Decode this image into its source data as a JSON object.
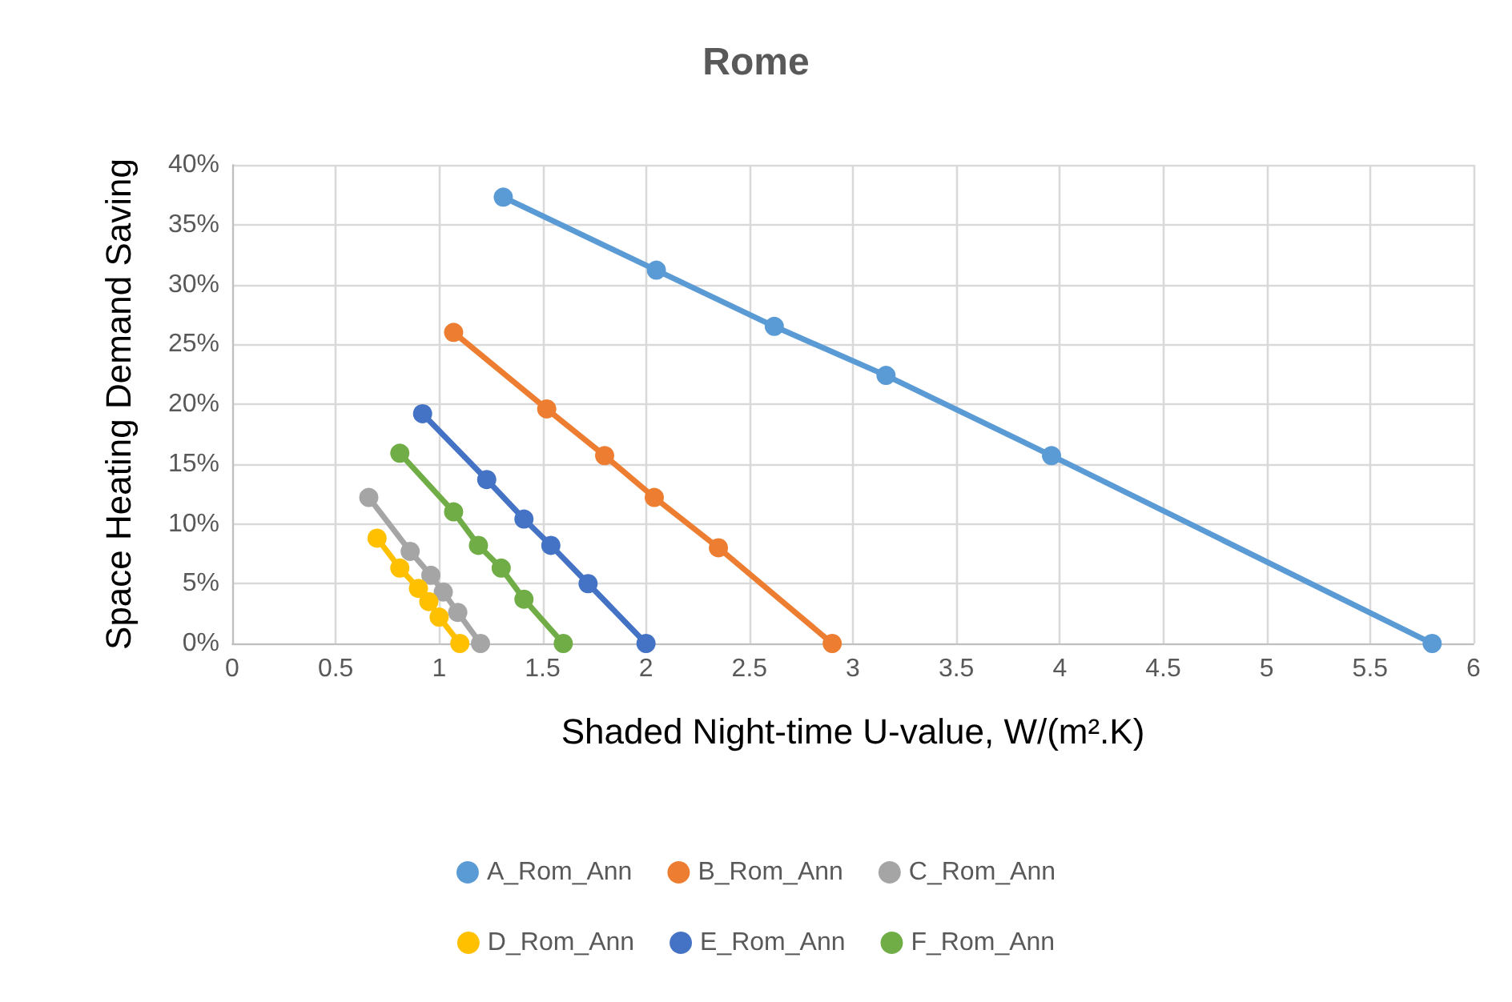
{
  "chart_data": {
    "type": "line",
    "title": "Rome",
    "xlabel": "Shaded Night-time U-value, W/(m².K)",
    "ylabel": "Space Heating Demand Saving",
    "xlim": [
      0,
      6
    ],
    "xticks": [
      0,
      0.5,
      1,
      1.5,
      2,
      2.5,
      3,
      3.5,
      4,
      4.5,
      5,
      5.5,
      6
    ],
    "ylim": [
      0,
      40
    ],
    "yticks": [
      {
        "value": 0,
        "label": "0%"
      },
      {
        "value": 5,
        "label": "5%"
      },
      {
        "value": 10,
        "label": "10%"
      },
      {
        "value": 15,
        "label": "15%"
      },
      {
        "value": 20,
        "label": "20%"
      },
      {
        "value": 25,
        "label": "25%"
      },
      {
        "value": 30,
        "label": "30%"
      },
      {
        "value": 35,
        "label": "35%"
      },
      {
        "value": 40,
        "label": "40%"
      }
    ],
    "grid": true,
    "legend": "bottom",
    "marker": "circle",
    "line_style": "solid",
    "series": [
      {
        "name": "A_Rom_Ann",
        "color": "#5b9bd5",
        "x": [
          1.31,
          2.05,
          2.62,
          3.16,
          3.96,
          5.8
        ],
        "values": [
          37.3,
          31.2,
          26.5,
          22.4,
          15.7,
          0
        ]
      },
      {
        "name": "B_Rom_Ann",
        "color": "#ed7d31",
        "x": [
          1.07,
          1.52,
          1.8,
          2.04,
          2.35,
          2.9
        ],
        "values": [
          26,
          19.6,
          15.7,
          12.2,
          8,
          0
        ]
      },
      {
        "name": "C_Rom_Ann",
        "color": "#a5a5a5",
        "x": [
          0.66,
          0.86,
          0.96,
          1.02,
          1.09,
          1.2
        ],
        "values": [
          12.2,
          7.7,
          5.7,
          4.3,
          2.6,
          0
        ]
      },
      {
        "name": "D_Rom_Ann",
        "color": "#ffc000",
        "x": [
          0.7,
          0.81,
          0.9,
          0.95,
          1,
          1.1
        ],
        "values": [
          8.8,
          6.3,
          4.6,
          3.5,
          2.2,
          0
        ]
      },
      {
        "name": "E_Rom_Ann",
        "color": "#4472c4",
        "x": [
          0.92,
          1.23,
          1.41,
          1.54,
          1.72,
          2
        ],
        "values": [
          19.2,
          13.7,
          10.4,
          8.2,
          5,
          0
        ]
      },
      {
        "name": "F_Rom_Ann",
        "color": "#70ad47",
        "x": [
          0.81,
          1.07,
          1.19,
          1.3,
          1.41,
          1.6
        ],
        "values": [
          15.9,
          11,
          8.2,
          6.3,
          3.7,
          0
        ]
      }
    ]
  }
}
